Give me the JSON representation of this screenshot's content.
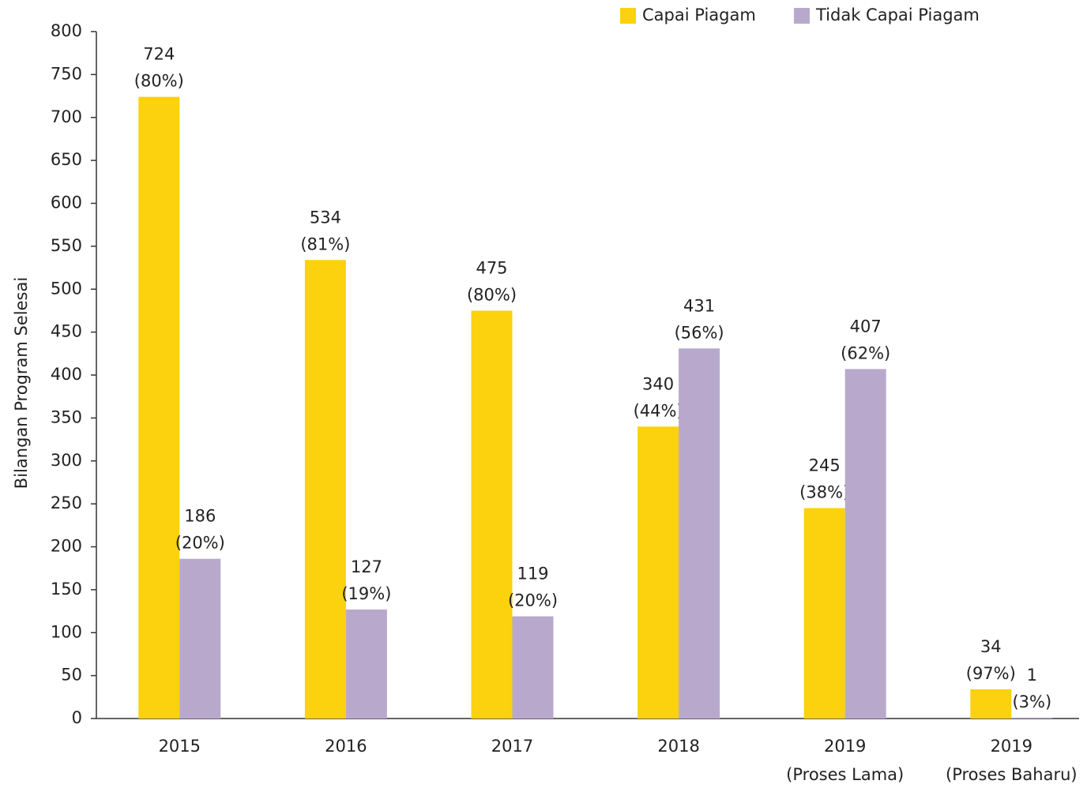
{
  "chart_data": {
    "type": "bar",
    "y_label": "Bilangan Program Selesai",
    "categories": [
      "2015",
      "2016",
      "2017",
      "2018",
      "2019\n(Proses Lama)",
      "2019\n(Proses Baharu)"
    ],
    "series": [
      {
        "name": "Capai Piagam",
        "color": "#fcd10d",
        "values": [
          724,
          534,
          475,
          340,
          245,
          34
        ],
        "shares": [
          "(80%)",
          "(81%)",
          "(80%)",
          "(44%)",
          "(38%)",
          "(97%)"
        ]
      },
      {
        "name": "Tidak Capai Piagam",
        "color": "#b8a9cc",
        "values": [
          186,
          127,
          119,
          431,
          407,
          1
        ],
        "shares": [
          "(20%)",
          "(19%)",
          "(20%)",
          "(56%)",
          "(62%)",
          "(3%)"
        ]
      }
    ],
    "ylim": [
      0,
      800
    ],
    "yticks": [
      0,
      50,
      100,
      150,
      200,
      250,
      300,
      350,
      400,
      450,
      500,
      550,
      600,
      650,
      700,
      750,
      800
    ],
    "legend": "top-right"
  }
}
